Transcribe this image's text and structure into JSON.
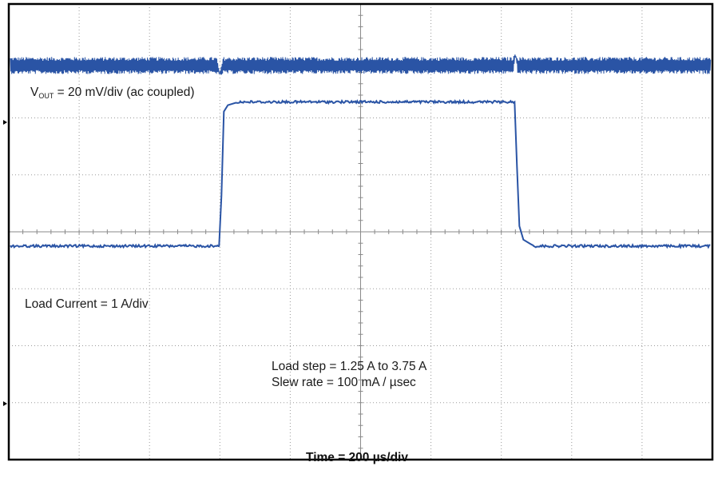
{
  "chart_data": {
    "type": "line",
    "title": "",
    "xlabel": "Time = 200 µs/div",
    "grid": true,
    "divisions": {
      "x": 10,
      "y": 8
    },
    "trace_color": "#2a54a5",
    "annotations": {
      "vout_main": "V",
      "vout_sub": "OUT",
      "vout_rest": " = 20 mV/div (ac coupled)",
      "load_current": "Load Current = 1 A/div",
      "load_step": "Load step = 1.25 A to 3.75 A",
      "slew_rate": "Slew rate = 100 mA / µsec"
    },
    "series": [
      {
        "type": "vout_ripple",
        "time_div": [
          0,
          10
        ],
        "baseline_div": 1.08,
        "ripple_pp_div": 0.3,
        "events": [
          {
            "time_div": 3.0,
            "dip_div": -0.28
          },
          {
            "time_div": 7.2,
            "spike_div": 0.32
          }
        ]
      },
      {
        "type": "load_current_step",
        "time_div": [
          0,
          10
        ],
        "low_div": 4.25,
        "high_div": 1.72,
        "rise_time_div": 3.0,
        "fall_time_div": 7.2
      }
    ]
  }
}
